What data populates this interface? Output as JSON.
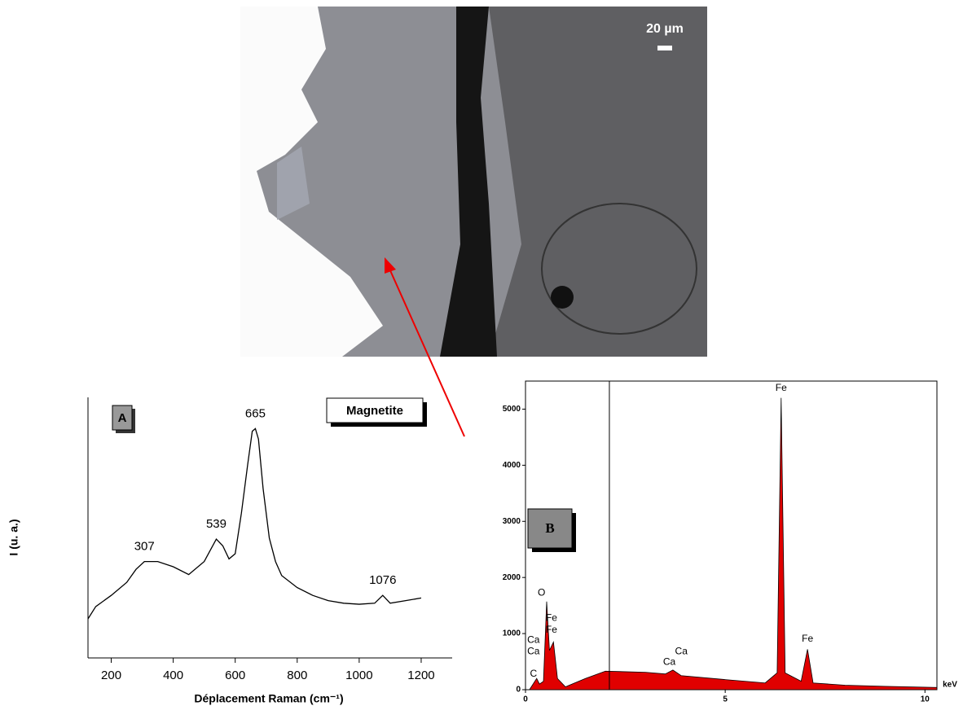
{
  "image": {
    "scale_label": "20 µm"
  },
  "chart_data": [
    {
      "type": "line",
      "panel_label": "A",
      "legend_box": "Magnetite",
      "x_label": "Déplacement Raman (cm⁻¹)",
      "y_label": "I (u. a.)",
      "xlim": [
        125,
        1300
      ],
      "xticks": [
        200,
        400,
        600,
        800,
        1000,
        1200
      ],
      "ylim": [
        0,
        100
      ],
      "color": "#000000",
      "x": [
        125,
        150,
        200,
        250,
        280,
        307,
        350,
        400,
        450,
        500,
        539,
        560,
        580,
        600,
        620,
        640,
        655,
        665,
        675,
        690,
        710,
        730,
        750,
        800,
        850,
        900,
        950,
        1000,
        1050,
        1076,
        1100,
        1150,
        1200
      ],
      "values": [
        15,
        19.7,
        24,
        29,
        34,
        37,
        37,
        35,
        32,
        37,
        45.6,
        43,
        38,
        40,
        55.6,
        74,
        87,
        88,
        84,
        65,
        46,
        37,
        31.6,
        27,
        24,
        22,
        21,
        20.6,
        21,
        24,
        21,
        22,
        23
      ],
      "annotations": [
        {
          "x": 307,
          "y": 37
        },
        {
          "x": 539,
          "y": 45.6
        },
        {
          "x": 665,
          "y": 88
        },
        {
          "x": 1076,
          "y": 24
        }
      ]
    },
    {
      "type": "area",
      "panel_label": "B",
      "x_label": "keV",
      "xlim": [
        0,
        10.3
      ],
      "xticks": [
        0,
        5,
        10
      ],
      "ylim": [
        0,
        5500
      ],
      "yticks": [
        0,
        1000,
        2000,
        3000,
        4000,
        5000
      ],
      "color": "#e00000",
      "cursor": 2.1,
      "x": [
        0.1,
        0.28,
        0.35,
        0.45,
        0.53,
        0.6,
        0.7,
        0.8,
        1.0,
        1.5,
        2.0,
        3.0,
        3.5,
        3.69,
        3.9,
        5.0,
        6.0,
        6.3,
        6.4,
        6.5,
        6.9,
        7.06,
        7.2,
        8.0,
        9.0,
        10.3
      ],
      "values": [
        0,
        200,
        100,
        150,
        1570,
        700,
        850,
        200,
        50,
        200,
        330,
        310,
        280,
        350,
        250,
        180,
        120,
        300,
        5200,
        300,
        150,
        720,
        120,
        80,
        60,
        40
      ],
      "annotations": [
        {
          "text": "C",
          "x": 0.2,
          "y": 280
        },
        {
          "text": "Ca",
          "x": 0.2,
          "y": 680
        },
        {
          "text": "Ca",
          "x": 0.2,
          "y": 880
        },
        {
          "text": "O",
          "x": 0.4,
          "y": 1720
        },
        {
          "text": "Fe",
          "x": 0.65,
          "y": 1270
        },
        {
          "text": "Fe",
          "x": 0.65,
          "y": 1060
        },
        {
          "text": "Ca",
          "x": 3.6,
          "y": 490
        },
        {
          "text": "Ca",
          "x": 3.9,
          "y": 680
        },
        {
          "text": "Fe",
          "x": 6.4,
          "y": 5370
        },
        {
          "text": "Fe",
          "x": 7.06,
          "y": 900
        }
      ]
    }
  ]
}
